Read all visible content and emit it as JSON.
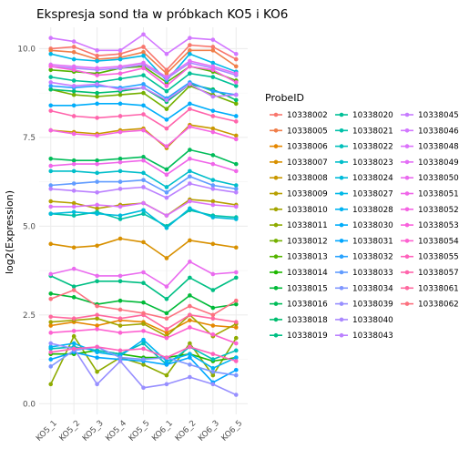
{
  "chart_data": {
    "type": "line",
    "title": "Ekspresja sond tła w próbkach KO5 i KO6",
    "xlabel": "",
    "ylabel": "log2(Expression)",
    "legend_title": "ProbeID",
    "legend_position": "right",
    "grid": true,
    "ylim": [
      -0.3,
      10.6
    ],
    "y_ticks": [
      0,
      2.5,
      5,
      7.5,
      10
    ],
    "y_tick_labels": [
      "0.0",
      "2.5",
      "5.0",
      "7.5",
      "10.0"
    ],
    "categories": [
      "KO5_1",
      "KO5_2",
      "KO5_3",
      "KO5_4",
      "KO5_5",
      "KO6_1",
      "KO6_2",
      "KO6_3",
      "KO6_5"
    ],
    "series": [
      {
        "name": "10338002",
        "color": "#F8766D",
        "values": [
          10.0,
          10.05,
          9.8,
          9.85,
          10.05,
          9.4,
          10.1,
          10.05,
          9.7
        ]
      },
      {
        "name": "10338005",
        "color": "#F07E4A",
        "values": [
          9.95,
          9.9,
          9.7,
          9.75,
          9.9,
          9.3,
          9.95,
          9.95,
          9.5
        ]
      },
      {
        "name": "10338006",
        "color": "#E58700",
        "values": [
          2.2,
          2.3,
          2.2,
          2.35,
          2.3,
          2.0,
          2.35,
          2.2,
          2.15
        ]
      },
      {
        "name": "10338007",
        "color": "#D89000",
        "values": [
          4.5,
          4.4,
          4.45,
          4.65,
          4.55,
          4.1,
          4.6,
          4.5,
          4.4
        ]
      },
      {
        "name": "10338008",
        "color": "#C99800",
        "values": [
          7.7,
          7.65,
          7.6,
          7.7,
          7.75,
          7.2,
          7.85,
          7.75,
          7.55
        ]
      },
      {
        "name": "10338009",
        "color": "#B79F00",
        "values": [
          5.7,
          5.65,
          5.5,
          5.6,
          5.65,
          5.3,
          5.75,
          5.7,
          5.6
        ]
      },
      {
        "name": "10338010",
        "color": "#A3A500",
        "values": [
          2.3,
          2.35,
          2.4,
          2.2,
          2.25,
          1.9,
          2.5,
          1.9,
          2.25
        ]
      },
      {
        "name": "10338011",
        "color": "#8EAB00",
        "values": [
          0.55,
          1.9,
          0.9,
          1.3,
          1.1,
          0.8,
          1.7,
          0.8,
          1.85
        ]
      },
      {
        "name": "10338012",
        "color": "#74B000",
        "values": [
          8.85,
          8.7,
          8.65,
          8.7,
          8.75,
          8.3,
          8.95,
          8.7,
          8.45
        ]
      },
      {
        "name": "10338013",
        "color": "#55B400",
        "values": [
          9.4,
          9.35,
          9.3,
          9.45,
          9.5,
          9.05,
          9.5,
          9.35,
          9.1
        ]
      },
      {
        "name": "10338014",
        "color": "#1EB800",
        "values": [
          1.4,
          1.4,
          1.5,
          1.4,
          1.3,
          1.3,
          1.4,
          1.2,
          1.3
        ]
      },
      {
        "name": "10338015",
        "color": "#00BA38",
        "values": [
          3.1,
          3.0,
          2.8,
          2.9,
          2.85,
          2.55,
          3.05,
          2.7,
          2.8
        ]
      },
      {
        "name": "10338016",
        "color": "#00BC59",
        "values": [
          6.9,
          6.85,
          6.85,
          6.9,
          6.95,
          6.6,
          7.15,
          7.0,
          6.75
        ]
      },
      {
        "name": "10338018",
        "color": "#00BE70",
        "values": [
          8.85,
          8.8,
          8.75,
          8.8,
          8.9,
          8.5,
          9.0,
          8.85,
          8.55
        ]
      },
      {
        "name": "10338019",
        "color": "#00BF84",
        "values": [
          3.6,
          3.3,
          3.45,
          3.45,
          3.4,
          2.95,
          3.55,
          3.2,
          3.55
        ]
      },
      {
        "name": "10338020",
        "color": "#00C097",
        "values": [
          9.2,
          9.1,
          9.05,
          9.15,
          9.25,
          8.8,
          9.3,
          9.2,
          8.95
        ]
      },
      {
        "name": "10338021",
        "color": "#00C1A9",
        "values": [
          5.35,
          5.3,
          5.4,
          5.2,
          5.35,
          5.0,
          5.45,
          5.3,
          5.25
        ]
      },
      {
        "name": "10338022",
        "color": "#00BFBA",
        "values": [
          1.55,
          1.6,
          1.5,
          1.4,
          1.7,
          1.1,
          1.6,
          1.25,
          1.5
        ]
      },
      {
        "name": "10338023",
        "color": "#00BECA",
        "values": [
          6.55,
          6.55,
          6.5,
          6.55,
          6.5,
          6.1,
          6.55,
          6.3,
          6.15
        ]
      },
      {
        "name": "10338024",
        "color": "#00BBDA",
        "values": [
          5.35,
          5.4,
          5.35,
          5.3,
          5.45,
          4.95,
          5.5,
          5.25,
          5.2
        ]
      },
      {
        "name": "10338027",
        "color": "#00B8E7",
        "values": [
          9.85,
          9.7,
          9.65,
          9.7,
          9.8,
          9.1,
          9.85,
          9.6,
          9.35
        ]
      },
      {
        "name": "10338028",
        "color": "#00B3F2",
        "values": [
          1.6,
          1.7,
          1.45,
          1.35,
          1.8,
          1.2,
          1.4,
          1.0,
          1.3
        ]
      },
      {
        "name": "10338030",
        "color": "#00ADFA",
        "values": [
          8.4,
          8.4,
          8.45,
          8.45,
          8.4,
          8.0,
          8.45,
          8.25,
          8.1
        ]
      },
      {
        "name": "10338031",
        "color": "#00A6FF",
        "values": [
          1.25,
          1.45,
          1.3,
          1.25,
          1.2,
          1.1,
          1.3,
          0.6,
          0.95
        ]
      },
      {
        "name": "10338032",
        "color": "#29A3FF",
        "values": [
          8.95,
          8.9,
          8.95,
          8.9,
          9.0,
          8.6,
          9.05,
          8.8,
          8.7
        ]
      },
      {
        "name": "10338033",
        "color": "#619CFF",
        "values": [
          6.15,
          6.2,
          6.25,
          6.25,
          6.3,
          5.95,
          6.4,
          6.15,
          6.05
        ]
      },
      {
        "name": "10338034",
        "color": "#7F96FF",
        "values": [
          1.05,
          1.5,
          1.6,
          1.3,
          1.25,
          1.3,
          1.1,
          0.9,
          0.8
        ]
      },
      {
        "name": "10338039",
        "color": "#978FFF",
        "values": [
          1.7,
          1.55,
          0.55,
          1.2,
          0.45,
          0.55,
          0.75,
          0.55,
          0.25
        ]
      },
      {
        "name": "10338040",
        "color": "#AA88FF",
        "values": [
          9.5,
          9.45,
          9.4,
          9.45,
          9.55,
          9.15,
          9.6,
          9.45,
          9.25
        ]
      },
      {
        "name": "10338043",
        "color": "#BB81FF",
        "values": [
          6.05,
          6.0,
          5.95,
          6.05,
          6.1,
          5.8,
          6.2,
          6.05,
          5.95
        ]
      },
      {
        "name": "10338045",
        "color": "#C77CFF",
        "values": [
          9.05,
          8.95,
          9.0,
          8.85,
          8.9,
          8.55,
          9.0,
          8.65,
          8.7
        ]
      },
      {
        "name": "10338046",
        "color": "#D277FF",
        "values": [
          10.3,
          10.2,
          9.95,
          9.95,
          10.4,
          9.85,
          10.3,
          10.25,
          9.85
        ]
      },
      {
        "name": "10338048",
        "color": "#DB72FB",
        "values": [
          5.55,
          5.55,
          5.6,
          5.55,
          5.65,
          5.3,
          5.7,
          5.6,
          5.55
        ]
      },
      {
        "name": "10338049",
        "color": "#E36EF6",
        "values": [
          9.55,
          9.5,
          9.45,
          9.5,
          9.6,
          9.2,
          9.65,
          9.5,
          9.3
        ]
      },
      {
        "name": "10338050",
        "color": "#EA6BEF",
        "values": [
          3.65,
          3.8,
          3.6,
          3.6,
          3.7,
          3.3,
          4.0,
          3.65,
          3.7
        ]
      },
      {
        "name": "10338051",
        "color": "#F066E9",
        "values": [
          6.7,
          6.75,
          6.75,
          6.8,
          6.85,
          6.45,
          6.9,
          6.75,
          6.55
        ]
      },
      {
        "name": "10338052",
        "color": "#F564E3",
        "values": [
          7.7,
          7.6,
          7.55,
          7.65,
          7.7,
          7.25,
          7.8,
          7.65,
          7.45
        ]
      },
      {
        "name": "10338053",
        "color": "#F962DD",
        "values": [
          9.5,
          9.4,
          9.25,
          9.3,
          9.45,
          8.95,
          9.5,
          9.4,
          9.05
        ]
      },
      {
        "name": "10338054",
        "color": "#FD61D1",
        "values": [
          2.0,
          2.05,
          2.1,
          2.0,
          2.05,
          1.85,
          2.15,
          1.95,
          1.7
        ]
      },
      {
        "name": "10338055",
        "color": "#FF62BC",
        "values": [
          1.45,
          1.55,
          1.6,
          1.5,
          1.55,
          1.3,
          1.6,
          1.4,
          1.2
        ]
      },
      {
        "name": "10338057",
        "color": "#FF65AC",
        "values": [
          8.25,
          8.1,
          8.05,
          8.1,
          8.15,
          7.75,
          8.3,
          8.1,
          7.95
        ]
      },
      {
        "name": "10338061",
        "color": "#FF689F",
        "values": [
          2.45,
          2.4,
          2.5,
          2.4,
          2.5,
          2.1,
          2.5,
          2.4,
          2.3
        ]
      },
      {
        "name": "10338062",
        "color": "#FC717F",
        "values": [
          2.95,
          3.2,
          2.75,
          2.65,
          2.55,
          2.4,
          2.75,
          2.5,
          2.9
        ]
      }
    ]
  }
}
